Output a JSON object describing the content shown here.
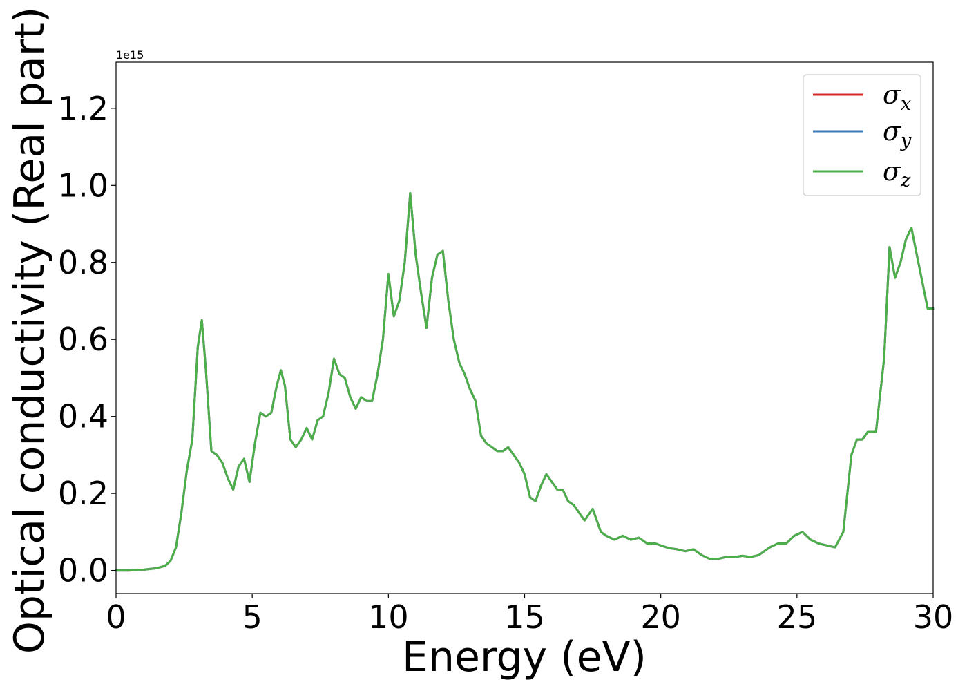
{
  "chart_data": {
    "type": "line",
    "xlabel": "Energy (eV)",
    "ylabel": "Optical conductivity (Real part)",
    "y_offset_text": "1e15",
    "y_scale_factor": 1000000000000000.0,
    "xlim": [
      0,
      30
    ],
    "ylim": [
      -0.06,
      1.32
    ],
    "x_ticks": [
      0,
      5,
      10,
      15,
      20,
      25,
      30
    ],
    "x_tick_labels": [
      "0",
      "5",
      "10",
      "15",
      "20",
      "25",
      "30"
    ],
    "y_ticks": [
      0.0,
      0.2,
      0.4,
      0.6,
      0.8,
      1.0,
      1.2
    ],
    "y_tick_labels": [
      "0.0",
      "0.2",
      "0.4",
      "0.6",
      "0.8",
      "1.0",
      "1.2"
    ],
    "grid": false,
    "legend_position": "top-right",
    "series": [
      {
        "name": "σx",
        "symbol": "σ",
        "subscript": "x",
        "color": "#d62728"
      },
      {
        "name": "σy",
        "symbol": "σ",
        "subscript": "y",
        "color": "#3a7dba"
      },
      {
        "name": "σz",
        "symbol": "σ",
        "subscript": "z",
        "color": "#4daf4a"
      }
    ],
    "x": [
      0,
      0.5,
      1.0,
      1.5,
      1.8,
      2.0,
      2.2,
      2.4,
      2.6,
      2.8,
      3.0,
      3.15,
      3.3,
      3.5,
      3.7,
      3.9,
      4.1,
      4.3,
      4.5,
      4.7,
      4.9,
      5.1,
      5.3,
      5.5,
      5.7,
      5.9,
      6.05,
      6.2,
      6.4,
      6.6,
      6.8,
      7.0,
      7.2,
      7.4,
      7.6,
      7.8,
      8.0,
      8.2,
      8.4,
      8.6,
      8.8,
      9.0,
      9.2,
      9.4,
      9.6,
      9.8,
      10.0,
      10.2,
      10.4,
      10.6,
      10.8,
      11.0,
      11.2,
      11.4,
      11.6,
      11.8,
      12.0,
      12.2,
      12.4,
      12.6,
      12.8,
      13.0,
      13.2,
      13.4,
      13.6,
      13.8,
      14.0,
      14.2,
      14.4,
      14.6,
      14.8,
      15.0,
      15.2,
      15.4,
      15.6,
      15.8,
      16.0,
      16.2,
      16.4,
      16.6,
      16.8,
      17.0,
      17.2,
      17.5,
      17.8,
      18.0,
      18.3,
      18.6,
      18.9,
      19.2,
      19.5,
      19.8,
      20.0,
      20.3,
      20.6,
      20.9,
      21.2,
      21.5,
      21.8,
      22.1,
      22.4,
      22.7,
      23.0,
      23.3,
      23.6,
      24.0,
      24.3,
      24.6,
      24.9,
      25.2,
      25.5,
      25.8,
      26.1,
      26.4,
      26.7,
      27.0,
      27.2,
      27.4,
      27.6,
      27.9,
      28.2,
      28.4,
      28.6,
      28.8,
      29.0,
      29.2,
      29.4,
      29.6,
      29.8,
      30.0
    ],
    "y": [
      0.0,
      0.0,
      0.002,
      0.006,
      0.012,
      0.025,
      0.06,
      0.15,
      0.26,
      0.34,
      0.58,
      0.65,
      0.52,
      0.31,
      0.3,
      0.28,
      0.24,
      0.21,
      0.27,
      0.29,
      0.23,
      0.33,
      0.41,
      0.4,
      0.41,
      0.48,
      0.52,
      0.48,
      0.34,
      0.32,
      0.34,
      0.37,
      0.34,
      0.39,
      0.4,
      0.46,
      0.55,
      0.51,
      0.5,
      0.45,
      0.42,
      0.45,
      0.44,
      0.44,
      0.51,
      0.6,
      0.77,
      0.66,
      0.7,
      0.8,
      0.98,
      0.82,
      0.72,
      0.63,
      0.76,
      0.82,
      0.83,
      0.7,
      0.6,
      0.54,
      0.51,
      0.47,
      0.44,
      0.35,
      0.33,
      0.32,
      0.31,
      0.31,
      0.32,
      0.3,
      0.28,
      0.25,
      0.19,
      0.18,
      0.22,
      0.25,
      0.23,
      0.21,
      0.21,
      0.18,
      0.17,
      0.15,
      0.13,
      0.16,
      0.1,
      0.09,
      0.08,
      0.09,
      0.08,
      0.085,
      0.07,
      0.07,
      0.065,
      0.058,
      0.055,
      0.05,
      0.055,
      0.04,
      0.03,
      0.03,
      0.035,
      0.035,
      0.038,
      0.035,
      0.04,
      0.06,
      0.07,
      0.07,
      0.09,
      0.1,
      0.08,
      0.07,
      0.065,
      0.06,
      0.1,
      0.3,
      0.34,
      0.34,
      0.36,
      0.36,
      0.55,
      0.84,
      0.76,
      0.8,
      0.86,
      0.89,
      0.82,
      0.75,
      0.68,
      0.68
    ]
  }
}
